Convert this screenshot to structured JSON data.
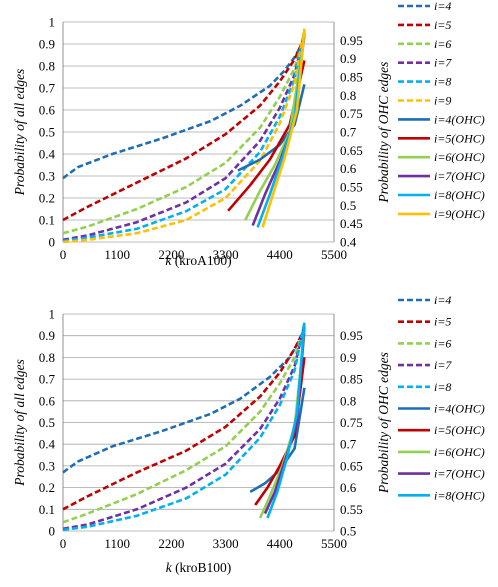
{
  "colors": {
    "i4": "#1f6eb5",
    "i5": "#c00000",
    "i6": "#92d050",
    "i7": "#7030a0",
    "i8": "#00b0f0",
    "i9": "#ffc000",
    "grid": "#a6a6a6"
  },
  "chart_data": [
    {
      "type": "line",
      "xlabel": {
        "var": "k",
        "rest": " (kroA100)"
      },
      "ylabel_left": "Probability of all edges",
      "ylabel_right": "Probability of OHC edges",
      "xlim": [
        0,
        5500
      ],
      "xticks": [
        0,
        1100,
        2200,
        3300,
        4400,
        5500
      ],
      "ylim_left": [
        0,
        1
      ],
      "yticks_left": [
        0,
        0.1,
        0.2,
        0.3,
        0.4,
        0.5,
        0.6,
        0.7,
        0.8,
        0.9,
        1
      ],
      "yticklabels_left": [
        "0",
        "0.1",
        "0.2",
        "0.3",
        "0.4",
        "0.5",
        "0.6",
        "0.7",
        "0.8",
        "0.9",
        "1"
      ],
      "ylim_right": [
        0.4,
        1
      ],
      "yticks_right": [
        0.4,
        0.45,
        0.5,
        0.55,
        0.6,
        0.65,
        0.7,
        0.75,
        0.8,
        0.85,
        0.9,
        0.95
      ],
      "yticklabels_right": [
        "0.4",
        "0.45",
        "0.5",
        "0.55",
        "0.6",
        "0.65",
        "0.7",
        "0.75",
        "0.8",
        "0.85",
        "0.9",
        "0.95"
      ],
      "grid": true,
      "legend_position": "right",
      "series": [
        {
          "name": "i=4",
          "style": "dashed",
          "axis": "left",
          "color_key": "i4",
          "x": [
            0,
            300,
            1000,
            2000,
            3000,
            3600,
            4200,
            4500,
            4700,
            4900
          ],
          "y": [
            0.29,
            0.34,
            0.4,
            0.47,
            0.55,
            0.62,
            0.71,
            0.78,
            0.84,
            0.92
          ]
        },
        {
          "name": "i=5",
          "style": "dashed",
          "axis": "left",
          "color_key": "i5",
          "x": [
            0,
            500,
            1500,
            2500,
            3300,
            4000,
            4400,
            4700,
            4900
          ],
          "y": [
            0.1,
            0.16,
            0.27,
            0.38,
            0.49,
            0.62,
            0.73,
            0.83,
            0.93
          ]
        },
        {
          "name": "i=6",
          "style": "dashed",
          "axis": "left",
          "color_key": "i6",
          "x": [
            0,
            500,
            1500,
            2500,
            3300,
            4000,
            4400,
            4700,
            4900
          ],
          "y": [
            0.04,
            0.07,
            0.15,
            0.25,
            0.36,
            0.52,
            0.66,
            0.79,
            0.94
          ]
        },
        {
          "name": "i=7",
          "style": "dashed",
          "axis": "left",
          "color_key": "i7",
          "x": [
            0,
            500,
            1500,
            2500,
            3300,
            4000,
            4400,
            4700,
            4900
          ],
          "y": [
            0.01,
            0.03,
            0.09,
            0.18,
            0.29,
            0.46,
            0.61,
            0.76,
            0.95
          ]
        },
        {
          "name": "i=8",
          "style": "dashed",
          "axis": "left",
          "color_key": "i8",
          "x": [
            0,
            500,
            1500,
            2500,
            3300,
            4000,
            4400,
            4700,
            4900
          ],
          "y": [
            0.005,
            0.02,
            0.06,
            0.14,
            0.24,
            0.41,
            0.57,
            0.74,
            0.96
          ]
        },
        {
          "name": "i=9",
          "style": "dashed",
          "axis": "left",
          "color_key": "i9",
          "x": [
            0,
            500,
            1500,
            2500,
            3300,
            4000,
            4400,
            4700,
            4900
          ],
          "y": [
            0.0,
            0.01,
            0.04,
            0.1,
            0.2,
            0.37,
            0.54,
            0.72,
            0.97
          ]
        },
        {
          "name": "i=4(OHC)",
          "style": "solid",
          "axis": "right",
          "color_key": "i4",
          "x": [
            3550,
            4000,
            4400,
            4700,
            4900
          ],
          "y": [
            0.595,
            0.625,
            0.665,
            0.72,
            0.83
          ]
        },
        {
          "name": "i=5(OHC)",
          "style": "solid",
          "axis": "right",
          "color_key": "i5",
          "x": [
            3350,
            3800,
            4200,
            4600,
            4900
          ],
          "y": [
            0.485,
            0.555,
            0.625,
            0.72,
            0.895
          ]
        },
        {
          "name": "i=6(OHC)",
          "style": "solid",
          "axis": "right",
          "color_key": "i6",
          "x": [
            3700,
            4000,
            4300,
            4600,
            4900
          ],
          "y": [
            0.46,
            0.54,
            0.61,
            0.7,
            0.96
          ]
        },
        {
          "name": "i=7(OHC)",
          "style": "solid",
          "axis": "right",
          "color_key": "i7",
          "x": [
            3850,
            4100,
            4400,
            4700,
            4900
          ],
          "y": [
            0.445,
            0.53,
            0.62,
            0.73,
            0.97
          ]
        },
        {
          "name": "i=8(OHC)",
          "style": "solid",
          "axis": "right",
          "color_key": "i8",
          "x": [
            3950,
            4200,
            4450,
            4700,
            4900
          ],
          "y": [
            0.44,
            0.53,
            0.63,
            0.74,
            0.975
          ]
        },
        {
          "name": "i=9(OHC)",
          "style": "solid",
          "axis": "right",
          "color_key": "i9",
          "x": [
            4050,
            4250,
            4500,
            4750,
            4900
          ],
          "y": [
            0.44,
            0.525,
            0.63,
            0.76,
            0.98
          ]
        }
      ]
    },
    {
      "type": "line",
      "xlabel": {
        "var": "k",
        "rest": " (kroB100)"
      },
      "ylabel_left": "Probability of all edges",
      "ylabel_right": "Probability of OHC edges",
      "xlim": [
        0,
        5500
      ],
      "xticks": [
        0,
        1100,
        2200,
        3300,
        4400,
        5500
      ],
      "ylim_left": [
        0,
        1
      ],
      "yticks_left": [
        0,
        0.1,
        0.2,
        0.3,
        0.4,
        0.5,
        0.6,
        0.7,
        0.8,
        0.9,
        1
      ],
      "yticklabels_left": [
        "0",
        "0.1",
        "0.2",
        "0.3",
        "0.4",
        "0.5",
        "0.6",
        "0.7",
        "0.8",
        "0.9",
        "1"
      ],
      "ylim_right": [
        0.5,
        1
      ],
      "yticks_right": [
        0.5,
        0.55,
        0.6,
        0.65,
        0.7,
        0.75,
        0.8,
        0.85,
        0.9,
        0.95
      ],
      "yticklabels_right": [
        "0.5",
        "0.55",
        "0.6",
        "0.65",
        "0.7",
        "0.75",
        "0.8",
        "0.85",
        "0.9",
        "0.95"
      ],
      "grid": true,
      "legend_position": "right",
      "series": [
        {
          "name": "i=4",
          "style": "dashed",
          "axis": "left",
          "color_key": "i4",
          "x": [
            0,
            300,
            1000,
            2000,
            3000,
            3600,
            4200,
            4600,
            4900
          ],
          "y": [
            0.27,
            0.32,
            0.39,
            0.46,
            0.54,
            0.61,
            0.71,
            0.8,
            0.92
          ]
        },
        {
          "name": "i=5",
          "style": "dashed",
          "axis": "left",
          "color_key": "i5",
          "x": [
            0,
            500,
            1500,
            2500,
            3300,
            4000,
            4400,
            4700,
            4900
          ],
          "y": [
            0.1,
            0.16,
            0.27,
            0.37,
            0.48,
            0.62,
            0.73,
            0.84,
            0.93
          ]
        },
        {
          "name": "i=6",
          "style": "dashed",
          "axis": "left",
          "color_key": "i6",
          "x": [
            0,
            500,
            1500,
            2500,
            3300,
            4000,
            4400,
            4700,
            4900
          ],
          "y": [
            0.04,
            0.08,
            0.17,
            0.28,
            0.39,
            0.55,
            0.68,
            0.8,
            0.94
          ]
        },
        {
          "name": "i=7",
          "style": "dashed",
          "axis": "left",
          "color_key": "i7",
          "x": [
            0,
            500,
            1500,
            2500,
            3300,
            4000,
            4400,
            4700,
            4900
          ],
          "y": [
            0.01,
            0.03,
            0.1,
            0.2,
            0.31,
            0.47,
            0.61,
            0.76,
            0.95
          ]
        },
        {
          "name": "i=8",
          "style": "dashed",
          "axis": "left",
          "color_key": "i8",
          "x": [
            0,
            500,
            1500,
            2500,
            3300,
            4000,
            4400,
            4700,
            4900
          ],
          "y": [
            0.005,
            0.02,
            0.07,
            0.15,
            0.26,
            0.43,
            0.58,
            0.74,
            0.96
          ]
        },
        {
          "name": "i=4(OHC)",
          "style": "solid",
          "axis": "right",
          "color_key": "i4",
          "x": [
            3800,
            4100,
            4400,
            4700,
            4900
          ],
          "y": [
            0.59,
            0.61,
            0.64,
            0.69,
            0.83
          ]
        },
        {
          "name": "i=5(OHC)",
          "style": "solid",
          "axis": "right",
          "color_key": "i5",
          "x": [
            3900,
            4150,
            4400,
            4700,
            4900
          ],
          "y": [
            0.56,
            0.6,
            0.65,
            0.72,
            0.9
          ]
        },
        {
          "name": "i=6(OHC)",
          "style": "solid",
          "axis": "right",
          "color_key": "i6",
          "x": [
            4000,
            4200,
            4450,
            4700,
            4900
          ],
          "y": [
            0.53,
            0.58,
            0.65,
            0.74,
            0.955
          ]
        },
        {
          "name": "i=7(OHC)",
          "style": "solid",
          "axis": "right",
          "color_key": "i7",
          "x": [
            4100,
            4300,
            4500,
            4750,
            4900
          ],
          "y": [
            0.54,
            0.59,
            0.66,
            0.75,
            0.97
          ]
        },
        {
          "name": "i=8(OHC)",
          "style": "solid",
          "axis": "right",
          "color_key": "i8",
          "x": [
            4150,
            4350,
            4550,
            4750,
            4900
          ],
          "y": [
            0.53,
            0.59,
            0.67,
            0.77,
            0.98
          ]
        }
      ]
    }
  ]
}
